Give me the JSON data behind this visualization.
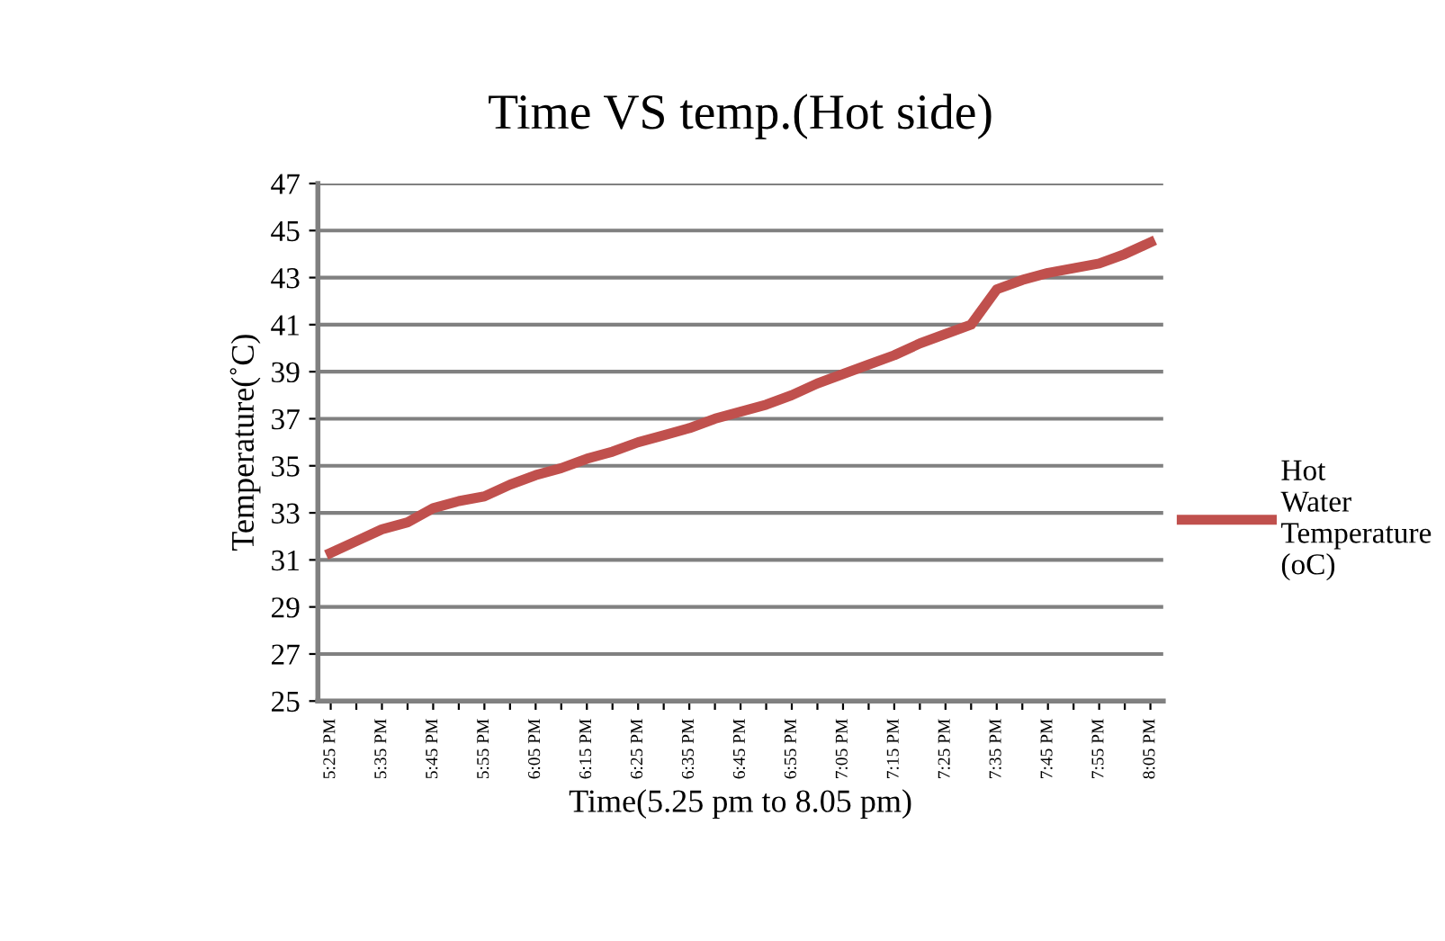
{
  "chart_data": {
    "type": "line",
    "title": "Time VS temp.(Hot side)",
    "xlabel": "Time(5.25 pm to 8.05 pm)",
    "ylabel": "Temperature(˚C)",
    "categories": [
      "5:25 PM",
      null,
      "5:35 PM",
      null,
      "5:45 PM",
      null,
      "5:55 PM",
      null,
      "6:05 PM",
      null,
      "6:15 PM",
      null,
      "6:25 PM",
      null,
      "6:35 PM",
      null,
      "6:45 PM",
      null,
      "6:55 PM",
      null,
      "7:05 PM",
      null,
      "7:15 PM",
      null,
      "7:25 PM",
      null,
      "7:35 PM",
      null,
      "7:45 PM",
      null,
      "7:55 PM",
      null,
      "8:05 PM"
    ],
    "series": [
      {
        "name": "Hot Water Temperature (oC)",
        "color": "#c0504d",
        "values": [
          31.3,
          31.8,
          32.3,
          32.6,
          33.2,
          33.5,
          33.7,
          34.2,
          34.6,
          34.9,
          35.3,
          35.6,
          36.0,
          36.3,
          36.6,
          37.0,
          37.3,
          37.6,
          38.0,
          38.5,
          38.9,
          39.3,
          39.7,
          40.2,
          40.6,
          41.0,
          42.5,
          42.9,
          43.2,
          43.4,
          43.6,
          44.0,
          44.5
        ]
      }
    ],
    "ylim": [
      25,
      47
    ],
    "yticks": [
      25,
      27,
      29,
      31,
      33,
      35,
      37,
      39,
      41,
      43,
      45,
      47
    ],
    "grid": "y",
    "legend": "right",
    "marker": "none",
    "line_style": "solid"
  }
}
